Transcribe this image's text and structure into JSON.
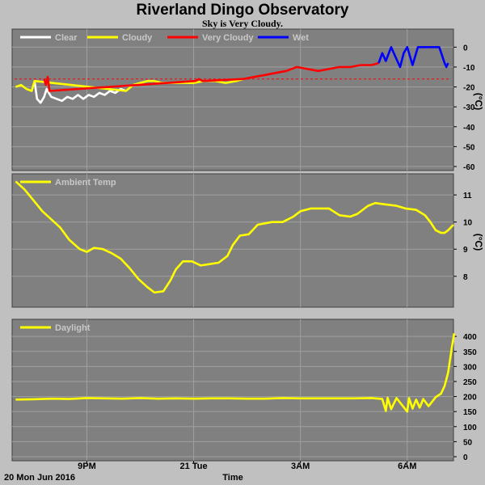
{
  "header": {
    "title": "Riverland Dingo Observatory",
    "subtitle": "Sky is Very Cloudy."
  },
  "footer": {
    "date_label": "20 Mon Jun 2016",
    "x_axis_title": "Time"
  },
  "colors": {
    "page_bg": "#c0c0c0",
    "plot_bg": "#808080",
    "grid": "#a0a0a0",
    "clear": "#ffffff",
    "cloudy": "#ffff00",
    "very_cloudy": "#ff0000",
    "wet": "#0000ff",
    "threshold": "#ff0000"
  },
  "chart_data": [
    {
      "type": "line",
      "panel": "sky",
      "title": "",
      "ylabel": "(°C)",
      "ylim": [
        -60,
        5
      ],
      "yticks": [
        0,
        -10,
        -20,
        -30,
        -40,
        -50,
        -60
      ],
      "xlim": [
        18.9,
        31.3
      ],
      "xticks": [
        {
          "x": 21,
          "label": "9PM"
        },
        {
          "x": 24,
          "label": "21 Tue"
        },
        {
          "x": 27,
          "label": "3AM"
        },
        {
          "x": 30,
          "label": "6AM"
        }
      ],
      "legend_position": "top-left",
      "grid": true,
      "threshold": -16,
      "series": [
        {
          "name": "Clear",
          "color": "#ffffff",
          "points": [
            [
              19.53,
              -17
            ],
            [
              19.6,
              -26
            ],
            [
              19.7,
              -28
            ],
            [
              19.8,
              -25
            ],
            [
              19.87,
              -21
            ],
            [
              19.93,
              -23
            ],
            [
              20.0,
              -25
            ],
            [
              20.15,
              -26
            ],
            [
              20.3,
              -27
            ],
            [
              20.45,
              -25
            ],
            [
              20.6,
              -26
            ],
            [
              20.75,
              -24
            ],
            [
              20.9,
              -26
            ],
            [
              21.05,
              -24
            ],
            [
              21.2,
              -25
            ],
            [
              21.35,
              -23
            ],
            [
              21.5,
              -24
            ],
            [
              21.65,
              -22
            ],
            [
              21.8,
              -23
            ],
            [
              21.95,
              -21
            ],
            [
              22.1,
              -22
            ]
          ]
        },
        {
          "name": "Cloudy",
          "color": "#ffff00",
          "points": [
            [
              19.0,
              -20
            ],
            [
              19.15,
              -19
            ],
            [
              19.3,
              -21
            ],
            [
              19.45,
              -22
            ],
            [
              19.53,
              -17
            ],
            [
              22.1,
              -22
            ],
            [
              22.3,
              -19
            ],
            [
              22.5,
              -18
            ],
            [
              22.7,
              -17
            ],
            [
              22.9,
              -17
            ],
            [
              23.1,
              -18
            ],
            [
              23.3,
              -18
            ],
            [
              23.5,
              -18
            ],
            [
              23.7,
              -18
            ],
            [
              24.0,
              -18
            ],
            [
              24.3,
              -17
            ],
            [
              24.6,
              -17
            ],
            [
              24.9,
              -18
            ],
            [
              25.2,
              -17
            ],
            [
              25.4,
              -16
            ]
          ]
        },
        {
          "name": "Very Cloudy",
          "color": "#ff0000",
          "points": [
            [
              19.8,
              -16
            ],
            [
              19.85,
              -19
            ],
            [
              19.9,
              -15
            ],
            [
              19.95,
              -22
            ],
            [
              24.05,
              -17
            ],
            [
              24.15,
              -16
            ],
            [
              24.25,
              -17
            ],
            [
              25.4,
              -16
            ],
            [
              25.7,
              -15
            ],
            [
              26.0,
              -14
            ],
            [
              26.3,
              -13
            ],
            [
              26.6,
              -12
            ],
            [
              26.9,
              -10
            ],
            [
              27.2,
              -11
            ],
            [
              27.5,
              -12
            ],
            [
              27.8,
              -11
            ],
            [
              28.1,
              -10
            ],
            [
              28.4,
              -10
            ],
            [
              28.7,
              -9
            ],
            [
              29.0,
              -9
            ],
            [
              29.2,
              -8
            ]
          ]
        },
        {
          "name": "Wet",
          "color": "#0000ff",
          "points": [
            [
              29.2,
              -8
            ],
            [
              29.3,
              -3
            ],
            [
              29.4,
              -7
            ],
            [
              29.55,
              0
            ],
            [
              29.7,
              -6
            ],
            [
              29.8,
              -10
            ],
            [
              29.9,
              -3
            ],
            [
              30.0,
              0
            ],
            [
              30.15,
              -9
            ],
            [
              30.3,
              0
            ],
            [
              30.6,
              0
            ],
            [
              30.9,
              0
            ],
            [
              31.05,
              -8
            ],
            [
              31.1,
              -10
            ],
            [
              31.15,
              -8
            ]
          ]
        }
      ]
    },
    {
      "type": "line",
      "panel": "ambient",
      "title": "",
      "ylabel": "(°C)",
      "ylim": [
        7.1,
        11.6
      ],
      "yticks": [
        8,
        9,
        10,
        11
      ],
      "xlim": [
        18.9,
        31.3
      ],
      "legend_position": "top-left",
      "grid": true,
      "series": [
        {
          "name": "Ambient Temp",
          "color": "#ffff00",
          "points": [
            [
              19.0,
              11.5
            ],
            [
              19.25,
              11.2
            ],
            [
              19.5,
              10.8
            ],
            [
              19.75,
              10.4
            ],
            [
              20.0,
              10.1
            ],
            [
              20.25,
              9.8
            ],
            [
              20.5,
              9.35
            ],
            [
              20.8,
              9.0
            ],
            [
              21.0,
              8.9
            ],
            [
              21.2,
              9.05
            ],
            [
              21.45,
              9.0
            ],
            [
              21.7,
              8.85
            ],
            [
              21.95,
              8.65
            ],
            [
              22.2,
              8.3
            ],
            [
              22.45,
              7.9
            ],
            [
              22.7,
              7.6
            ],
            [
              22.9,
              7.4
            ],
            [
              23.15,
              7.45
            ],
            [
              23.35,
              7.85
            ],
            [
              23.5,
              8.25
            ],
            [
              23.7,
              8.55
            ],
            [
              23.95,
              8.55
            ],
            [
              24.2,
              8.4
            ],
            [
              24.45,
              8.45
            ],
            [
              24.7,
              8.5
            ],
            [
              24.95,
              8.75
            ],
            [
              25.1,
              9.15
            ],
            [
              25.3,
              9.5
            ],
            [
              25.55,
              9.55
            ],
            [
              25.8,
              9.9
            ],
            [
              26.2,
              10.0
            ],
            [
              26.5,
              10.0
            ],
            [
              26.8,
              10.2
            ],
            [
              27.0,
              10.4
            ],
            [
              27.3,
              10.5
            ],
            [
              27.8,
              10.5
            ],
            [
              28.1,
              10.25
            ],
            [
              28.4,
              10.2
            ],
            [
              28.6,
              10.3
            ],
            [
              28.9,
              10.6
            ],
            [
              29.1,
              10.7
            ],
            [
              29.4,
              10.65
            ],
            [
              29.7,
              10.6
            ],
            [
              29.95,
              10.5
            ],
            [
              30.25,
              10.45
            ],
            [
              30.5,
              10.25
            ],
            [
              30.65,
              10.0
            ],
            [
              30.8,
              9.7
            ],
            [
              30.95,
              9.6
            ],
            [
              31.05,
              9.6
            ],
            [
              31.15,
              9.7
            ],
            [
              31.3,
              9.9
            ]
          ]
        }
      ]
    },
    {
      "type": "line",
      "panel": "daylight",
      "title": "",
      "ylabel": "",
      "ylim": [
        0,
        430
      ],
      "yticks": [
        0,
        50,
        100,
        150,
        200,
        250,
        300,
        350,
        400
      ],
      "xlim": [
        18.9,
        31.3
      ],
      "legend_position": "top-left",
      "grid": true,
      "series": [
        {
          "name": "Daylight",
          "color": "#ffff00",
          "points": [
            [
              19.0,
              190
            ],
            [
              19.5,
              191
            ],
            [
              20.0,
              193
            ],
            [
              20.5,
              192
            ],
            [
              21.0,
              195
            ],
            [
              21.5,
              194
            ],
            [
              22.0,
              193
            ],
            [
              22.5,
              195
            ],
            [
              23.0,
              193
            ],
            [
              23.5,
              194
            ],
            [
              24.0,
              193
            ],
            [
              24.5,
              194
            ],
            [
              25.0,
              194
            ],
            [
              25.5,
              193
            ],
            [
              26.0,
              193
            ],
            [
              26.5,
              195
            ],
            [
              27.0,
              194
            ],
            [
              27.5,
              194
            ],
            [
              28.0,
              194
            ],
            [
              28.5,
              194
            ],
            [
              29.0,
              195
            ],
            [
              29.3,
              192
            ],
            [
              29.4,
              152
            ],
            [
              29.45,
              196
            ],
            [
              29.55,
              158
            ],
            [
              29.7,
              195
            ],
            [
              30.0,
              150
            ],
            [
              30.05,
              195
            ],
            [
              30.15,
              160
            ],
            [
              30.25,
              190
            ],
            [
              30.35,
              163
            ],
            [
              30.45,
              192
            ],
            [
              30.6,
              168
            ],
            [
              30.8,
              198
            ],
            [
              30.95,
              210
            ],
            [
              31.05,
              235
            ],
            [
              31.15,
              280
            ],
            [
              31.25,
              360
            ],
            [
              31.32,
              410
            ]
          ]
        }
      ]
    }
  ]
}
